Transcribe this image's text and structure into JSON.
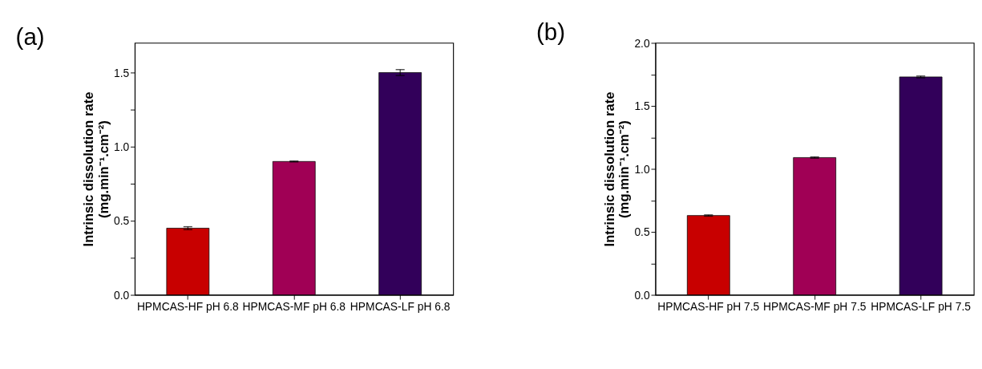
{
  "chart_data": [
    {
      "type": "bar",
      "title": "(a)",
      "ylabel": "Intrinsic dissolution rate\n(mg.min⁻¹.cm⁻²)",
      "categories": [
        "HPMCAS-HF pH 6.8",
        "HPMCAS-MF pH 6.8",
        "HPMCAS-LF pH 6.8"
      ],
      "values": [
        0.45,
        0.9,
        1.5
      ],
      "errors": [
        0.01,
        0.003,
        0.02
      ],
      "colors": [
        "#c80000",
        "#a00055",
        "#32005a"
      ],
      "ylim": [
        0,
        1.7
      ],
      "yticks": [
        {
          "value": 0,
          "label": "0.0"
        },
        {
          "value": 0.25,
          "label": null
        },
        {
          "value": 0.5,
          "label": "0.5"
        },
        {
          "value": 0.75,
          "label": null
        },
        {
          "value": 1,
          "label": "1.0"
        },
        {
          "value": 1.25,
          "label": null
        },
        {
          "value": 1.5,
          "label": "1.5"
        }
      ],
      "grid": false
    },
    {
      "type": "bar",
      "title": "(b)",
      "ylabel": "Intrinsic dissolution rate\n(mg.min⁻¹.cm⁻²)",
      "categories": [
        "HPMCAS-HF pH 7.5",
        "HPMCAS-MF pH 7.5",
        "HPMCAS-LF pH 7.5"
      ],
      "values": [
        0.63,
        1.09,
        1.73
      ],
      "errors": [
        0.005,
        0.005,
        0.007
      ],
      "colors": [
        "#c80000",
        "#a00055",
        "#32005a"
      ],
      "ylim": [
        0,
        2.0
      ],
      "yticks": [
        {
          "value": 0,
          "label": "0.0"
        },
        {
          "value": 0.25,
          "label": null
        },
        {
          "value": 0.5,
          "label": "0.5"
        },
        {
          "value": 0.75,
          "label": null
        },
        {
          "value": 1,
          "label": "1.0"
        },
        {
          "value": 1.25,
          "label": null
        },
        {
          "value": 1.5,
          "label": "1.5"
        },
        {
          "value": 1.75,
          "label": null
        },
        {
          "value": 2,
          "label": "2.0"
        }
      ],
      "grid": false
    }
  ]
}
